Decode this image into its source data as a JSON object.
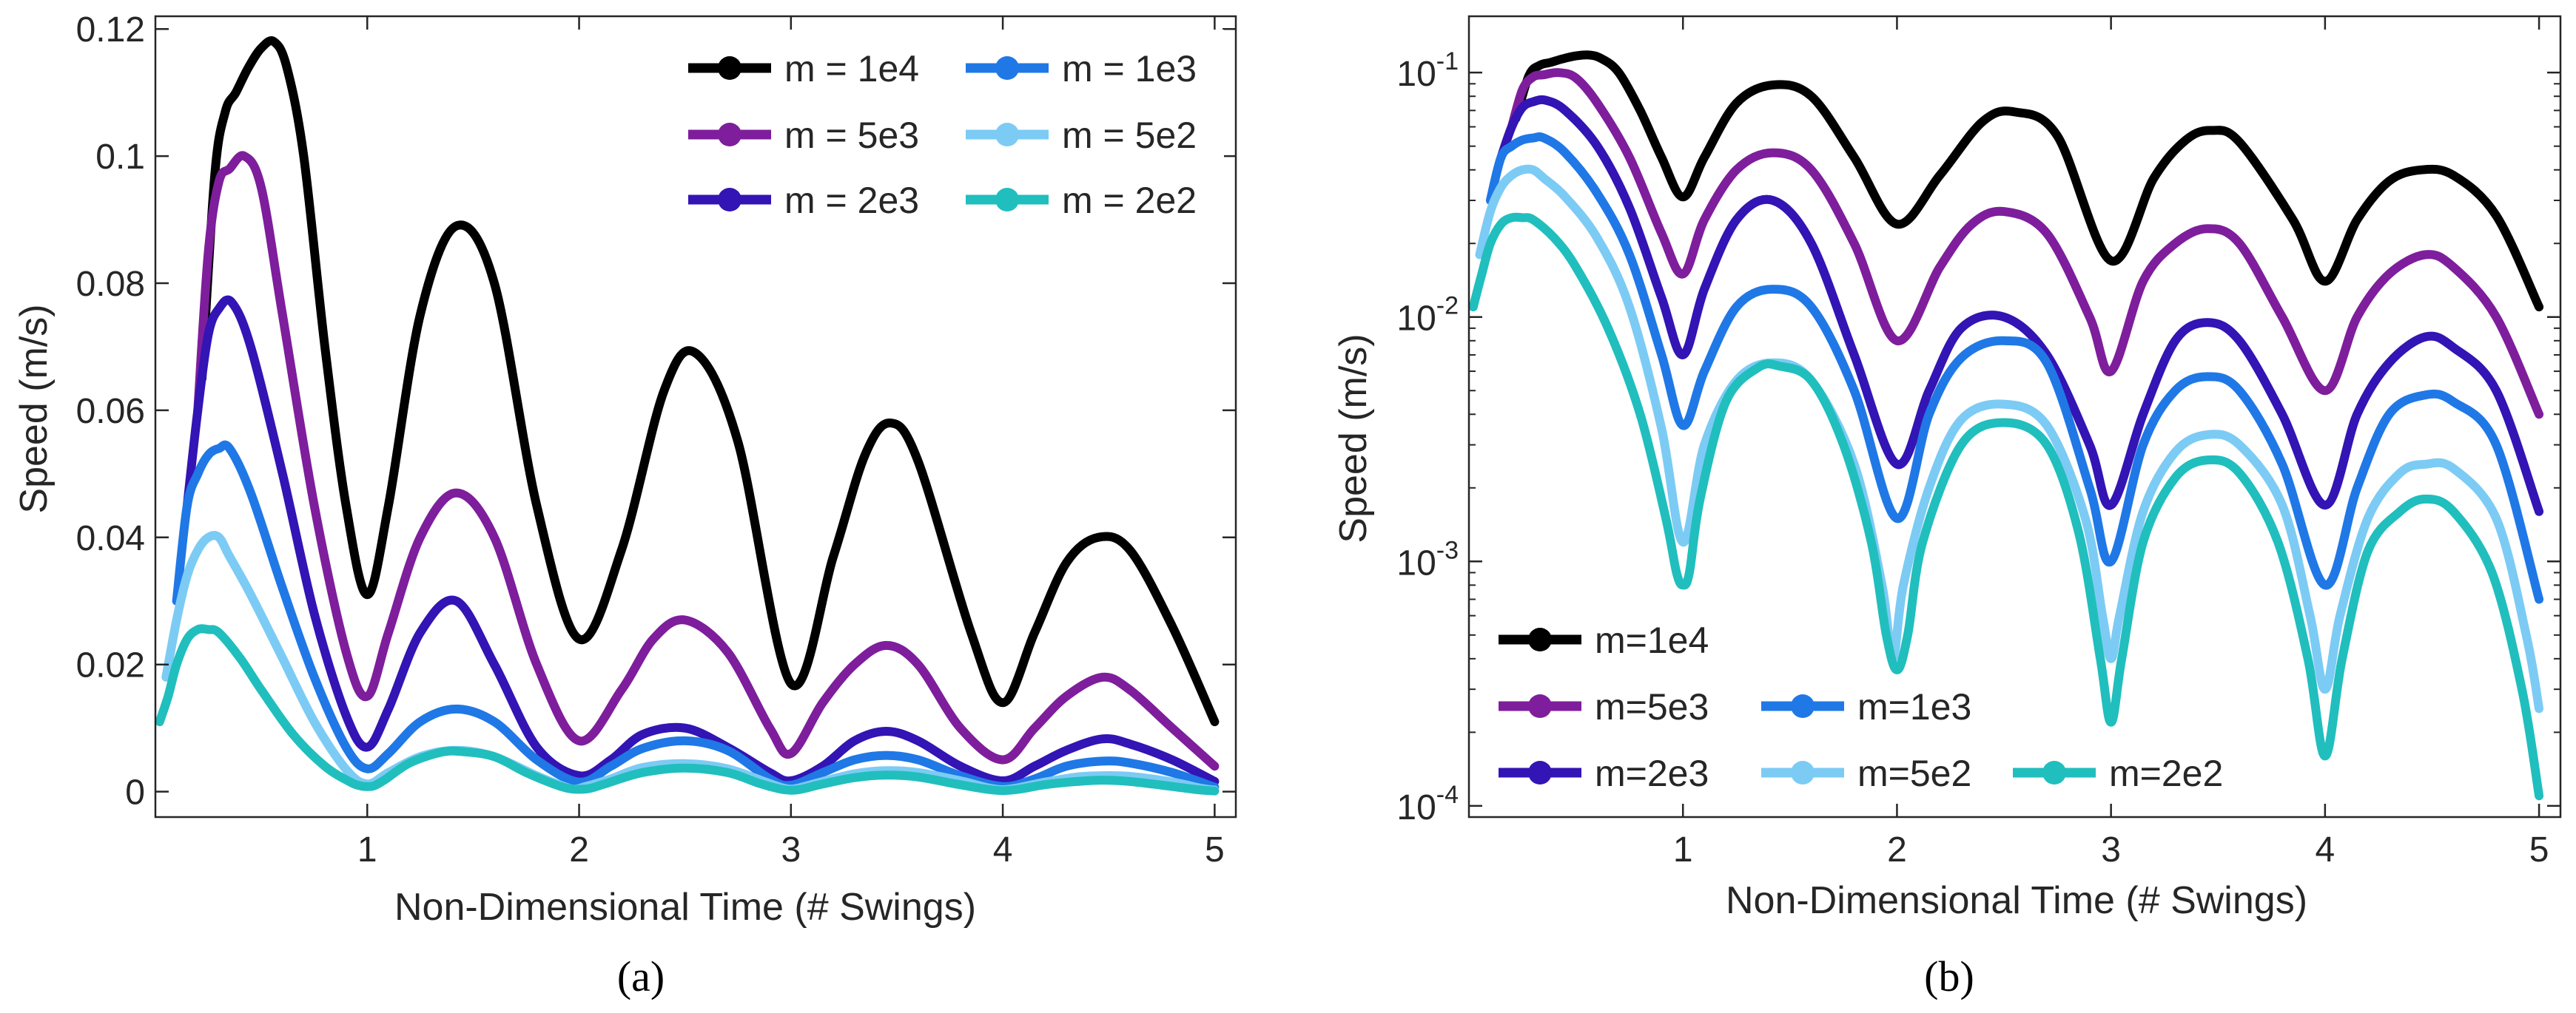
{
  "colors": {
    "m_1e4": "#000000",
    "m_5e3": "#7E1E9C",
    "m_2e3": "#3314B4",
    "m_1e3": "#1F78E6",
    "m_5e2": "#7CCBF4",
    "m_2e2": "#21BEBE",
    "axis": "#262626",
    "background": "#ffffff"
  },
  "chart_data": [
    {
      "panel": "a",
      "caption": "(a)",
      "type": "line",
      "yscale": "linear",
      "xlabel": "Non-Dimensional Time (# Swings)",
      "ylabel": "Speed (m/s)",
      "xlim": [
        0,
        5.1
      ],
      "ylim": [
        -0.004,
        0.122
      ],
      "xticks": [
        1,
        2,
        3,
        4,
        5
      ],
      "xtick_labels": [
        "1",
        "2",
        "3",
        "4",
        "5"
      ],
      "yticks": [
        0,
        0.02,
        0.04,
        0.06,
        0.08,
        0.1,
        0.12
      ],
      "ytick_labels": [
        "0",
        "0.02",
        "0.04",
        "0.06",
        "0.08",
        "0.1",
        "0.12"
      ],
      "grid": false,
      "legend_position": "top-right",
      "legend_layout": "two-columns",
      "legend": [
        {
          "label": "m = 1e4",
          "color_key": "m_1e4"
        },
        {
          "label": "m = 1e3",
          "color_key": "m_1e3"
        },
        {
          "label": "m = 5e3",
          "color_key": "m_5e3"
        },
        {
          "label": "m = 5e2",
          "color_key": "m_5e2"
        },
        {
          "label": "m = 2e3",
          "color_key": "m_2e3"
        },
        {
          "label": "m = 2e2",
          "color_key": "m_2e2"
        }
      ],
      "series": [
        {
          "name": "m = 1e4",
          "color_key": "m_1e4",
          "points": [
            [
              0.22,
              0.065
            ],
            [
              0.28,
              0.097
            ],
            [
              0.33,
              0.107
            ],
            [
              0.38,
              0.11
            ],
            [
              0.44,
              0.114
            ],
            [
              0.5,
              0.117
            ],
            [
              0.56,
              0.118
            ],
            [
              0.62,
              0.114
            ],
            [
              0.7,
              0.1
            ],
            [
              0.8,
              0.07
            ],
            [
              0.9,
              0.045
            ],
            [
              1.0,
              0.031
            ],
            [
              1.1,
              0.045
            ],
            [
              1.25,
              0.075
            ],
            [
              1.42,
              0.089
            ],
            [
              1.6,
              0.08
            ],
            [
              1.8,
              0.045
            ],
            [
              2.0,
              0.024
            ],
            [
              2.2,
              0.038
            ],
            [
              2.4,
              0.063
            ],
            [
              2.55,
              0.069
            ],
            [
              2.75,
              0.055
            ],
            [
              3.0,
              0.017
            ],
            [
              3.2,
              0.037
            ],
            [
              3.35,
              0.053
            ],
            [
              3.47,
              0.058
            ],
            [
              3.6,
              0.052
            ],
            [
              3.85,
              0.025
            ],
            [
              4.0,
              0.014
            ],
            [
              4.15,
              0.025
            ],
            [
              4.3,
              0.036
            ],
            [
              4.45,
              0.04
            ],
            [
              4.6,
              0.038
            ],
            [
              4.8,
              0.026
            ],
            [
              5.0,
              0.011
            ]
          ]
        },
        {
          "name": "m = 5e3",
          "color_key": "m_5e3",
          "points": [
            [
              0.2,
              0.06
            ],
            [
              0.25,
              0.085
            ],
            [
              0.3,
              0.096
            ],
            [
              0.35,
              0.098
            ],
            [
              0.42,
              0.1
            ],
            [
              0.5,
              0.095
            ],
            [
              0.6,
              0.075
            ],
            [
              0.75,
              0.045
            ],
            [
              0.9,
              0.022
            ],
            [
              1.0,
              0.015
            ],
            [
              1.1,
              0.025
            ],
            [
              1.25,
              0.04
            ],
            [
              1.42,
              0.047
            ],
            [
              1.6,
              0.04
            ],
            [
              1.8,
              0.02
            ],
            [
              2.0,
              0.008
            ],
            [
              2.2,
              0.016
            ],
            [
              2.35,
              0.024
            ],
            [
              2.5,
              0.027
            ],
            [
              2.7,
              0.022
            ],
            [
              2.9,
              0.01
            ],
            [
              3.0,
              0.006
            ],
            [
              3.15,
              0.014
            ],
            [
              3.3,
              0.02
            ],
            [
              3.45,
              0.023
            ],
            [
              3.6,
              0.02
            ],
            [
              3.8,
              0.01
            ],
            [
              4.0,
              0.005
            ],
            [
              4.15,
              0.01
            ],
            [
              4.3,
              0.015
            ],
            [
              4.47,
              0.018
            ],
            [
              4.6,
              0.016
            ],
            [
              4.8,
              0.01
            ],
            [
              5.0,
              0.004
            ]
          ]
        },
        {
          "name": "m = 2e3",
          "color_key": "m_2e3",
          "points": [
            [
              0.15,
              0.045
            ],
            [
              0.2,
              0.06
            ],
            [
              0.25,
              0.072
            ],
            [
              0.3,
              0.076
            ],
            [
              0.36,
              0.077
            ],
            [
              0.45,
              0.07
            ],
            [
              0.6,
              0.05
            ],
            [
              0.75,
              0.028
            ],
            [
              0.9,
              0.012
            ],
            [
              1.0,
              0.007
            ],
            [
              1.1,
              0.013
            ],
            [
              1.25,
              0.025
            ],
            [
              1.42,
              0.03
            ],
            [
              1.6,
              0.02
            ],
            [
              1.8,
              0.007
            ],
            [
              2.0,
              0.0025
            ],
            [
              2.15,
              0.005
            ],
            [
              2.3,
              0.009
            ],
            [
              2.5,
              0.01
            ],
            [
              2.7,
              0.007
            ],
            [
              2.9,
              0.003
            ],
            [
              3.0,
              0.0017
            ],
            [
              3.15,
              0.004
            ],
            [
              3.3,
              0.008
            ],
            [
              3.45,
              0.0095
            ],
            [
              3.6,
              0.008
            ],
            [
              3.8,
              0.004
            ],
            [
              4.0,
              0.0017
            ],
            [
              4.15,
              0.004
            ],
            [
              4.3,
              0.0065
            ],
            [
              4.47,
              0.0083
            ],
            [
              4.6,
              0.0075
            ],
            [
              4.8,
              0.005
            ],
            [
              5.0,
              0.0016
            ]
          ]
        },
        {
          "name": "m = 1e3",
          "color_key": "m_1e3",
          "points": [
            [
              0.1,
              0.03
            ],
            [
              0.15,
              0.045
            ],
            [
              0.2,
              0.05
            ],
            [
              0.25,
              0.053
            ],
            [
              0.3,
              0.054
            ],
            [
              0.35,
              0.054
            ],
            [
              0.45,
              0.047
            ],
            [
              0.6,
              0.032
            ],
            [
              0.75,
              0.018
            ],
            [
              0.9,
              0.007
            ],
            [
              1.0,
              0.0036
            ],
            [
              1.1,
              0.006
            ],
            [
              1.25,
              0.011
            ],
            [
              1.42,
              0.013
            ],
            [
              1.6,
              0.011
            ],
            [
              1.8,
              0.005
            ],
            [
              2.0,
              0.0015
            ],
            [
              2.15,
              0.004
            ],
            [
              2.3,
              0.0068
            ],
            [
              2.5,
              0.008
            ],
            [
              2.7,
              0.0065
            ],
            [
              2.9,
              0.002
            ],
            [
              3.0,
              0.001
            ],
            [
              3.15,
              0.003
            ],
            [
              3.3,
              0.005
            ],
            [
              3.45,
              0.0057
            ],
            [
              3.6,
              0.005
            ],
            [
              3.8,
              0.0025
            ],
            [
              4.0,
              0.0008
            ],
            [
              4.15,
              0.002
            ],
            [
              4.3,
              0.004
            ],
            [
              4.47,
              0.0048
            ],
            [
              4.6,
              0.0045
            ],
            [
              4.8,
              0.003
            ],
            [
              5.0,
              0.0007
            ]
          ]
        },
        {
          "name": "m = 5e2",
          "color_key": "m_5e2",
          "points": [
            [
              0.05,
              0.018
            ],
            [
              0.1,
              0.027
            ],
            [
              0.15,
              0.034
            ],
            [
              0.2,
              0.038
            ],
            [
              0.25,
              0.04
            ],
            [
              0.3,
              0.04
            ],
            [
              0.35,
              0.037
            ],
            [
              0.45,
              0.031
            ],
            [
              0.6,
              0.021
            ],
            [
              0.75,
              0.011
            ],
            [
              0.9,
              0.0035
            ],
            [
              1.0,
              0.0012
            ],
            [
              1.1,
              0.003
            ],
            [
              1.25,
              0.0055
            ],
            [
              1.42,
              0.0065
            ],
            [
              1.6,
              0.0055
            ],
            [
              1.8,
              0.0025
            ],
            [
              1.93,
              0.0008
            ],
            [
              1.98,
              0.0004
            ],
            [
              2.03,
              0.0008
            ],
            [
              2.15,
              0.002
            ],
            [
              2.3,
              0.0038
            ],
            [
              2.5,
              0.0044
            ],
            [
              2.7,
              0.0036
            ],
            [
              2.88,
              0.0015
            ],
            [
              2.96,
              0.0006
            ],
            [
              3.0,
              0.0004
            ],
            [
              3.04,
              0.0006
            ],
            [
              3.15,
              0.0016
            ],
            [
              3.3,
              0.0028
            ],
            [
              3.45,
              0.0033
            ],
            [
              3.6,
              0.003
            ],
            [
              3.8,
              0.0017
            ],
            [
              3.93,
              0.0006
            ],
            [
              4.0,
              0.0003
            ],
            [
              4.07,
              0.0006
            ],
            [
              4.2,
              0.0015
            ],
            [
              4.35,
              0.0023
            ],
            [
              4.47,
              0.0025
            ],
            [
              4.6,
              0.0024
            ],
            [
              4.8,
              0.0015
            ],
            [
              4.94,
              0.0005
            ],
            [
              5.0,
              0.00025
            ]
          ]
        },
        {
          "name": "m = 2e2",
          "color_key": "m_2e2",
          "points": [
            [
              0.02,
              0.011
            ],
            [
              0.06,
              0.015
            ],
            [
              0.1,
              0.02
            ],
            [
              0.15,
              0.024
            ],
            [
              0.2,
              0.0255
            ],
            [
              0.25,
              0.0255
            ],
            [
              0.3,
              0.025
            ],
            [
              0.4,
              0.021
            ],
            [
              0.5,
              0.016
            ],
            [
              0.65,
              0.009
            ],
            [
              0.8,
              0.004
            ],
            [
              0.92,
              0.0015
            ],
            [
              0.97,
              0.0009
            ],
            [
              1.0,
              0.0008
            ],
            [
              1.03,
              0.0009
            ],
            [
              1.08,
              0.0018
            ],
            [
              1.2,
              0.0045
            ],
            [
              1.35,
              0.0062
            ],
            [
              1.45,
              0.0063
            ],
            [
              1.6,
              0.0055
            ],
            [
              1.75,
              0.003
            ],
            [
              1.88,
              0.0012
            ],
            [
              1.95,
              0.0005
            ],
            [
              2.0,
              0.00036
            ],
            [
              2.05,
              0.0005
            ],
            [
              2.12,
              0.0012
            ],
            [
              2.3,
              0.003
            ],
            [
              2.5,
              0.0037
            ],
            [
              2.7,
              0.003
            ],
            [
              2.85,
              0.0013
            ],
            [
              2.95,
              0.0004
            ],
            [
              3.0,
              0.00022
            ],
            [
              3.05,
              0.0004
            ],
            [
              3.15,
              0.0012
            ],
            [
              3.3,
              0.0022
            ],
            [
              3.45,
              0.0026
            ],
            [
              3.6,
              0.0023
            ],
            [
              3.78,
              0.0012
            ],
            [
              3.92,
              0.0004
            ],
            [
              4.0,
              0.00016
            ],
            [
              4.08,
              0.0004
            ],
            [
              4.2,
              0.0011
            ],
            [
              4.35,
              0.0016
            ],
            [
              4.47,
              0.0018
            ],
            [
              4.6,
              0.0016
            ],
            [
              4.78,
              0.0009
            ],
            [
              4.92,
              0.0003
            ],
            [
              5.0,
              0.00011
            ]
          ]
        }
      ]
    },
    {
      "panel": "b",
      "caption": "(b)",
      "type": "line",
      "yscale": "log",
      "xlabel": "Non-Dimensional Time (# Swings)",
      "ylabel": "Speed (m/s)",
      "xlim": [
        0,
        5.1
      ],
      "ylim": [
        9e-05,
        0.17
      ],
      "xticks": [
        1,
        2,
        3,
        4,
        5
      ],
      "xtick_labels": [
        "1",
        "2",
        "3",
        "4",
        "5"
      ],
      "yticks": [
        0.0001,
        0.001,
        0.01,
        0.1
      ],
      "ytick_labels": [
        {
          "base": "10",
          "exp": "-4"
        },
        {
          "base": "10",
          "exp": "-3"
        },
        {
          "base": "10",
          "exp": "-2"
        },
        {
          "base": "10",
          "exp": "-1"
        }
      ],
      "grid": false,
      "legend_position": "bottom-left",
      "legend_layout": "stair",
      "legend": [
        {
          "label": "m=1e4",
          "color_key": "m_1e4"
        },
        {
          "label": "m=5e3",
          "color_key": "m_5e3"
        },
        {
          "label": "m=1e3",
          "color_key": "m_1e3"
        },
        {
          "label": "m=2e3",
          "color_key": "m_2e3"
        },
        {
          "label": "m=5e2",
          "color_key": "m_5e2"
        },
        {
          "label": "m=2e2",
          "color_key": "m_2e2"
        }
      ],
      "series_ref": "same data as panel (a)"
    }
  ]
}
